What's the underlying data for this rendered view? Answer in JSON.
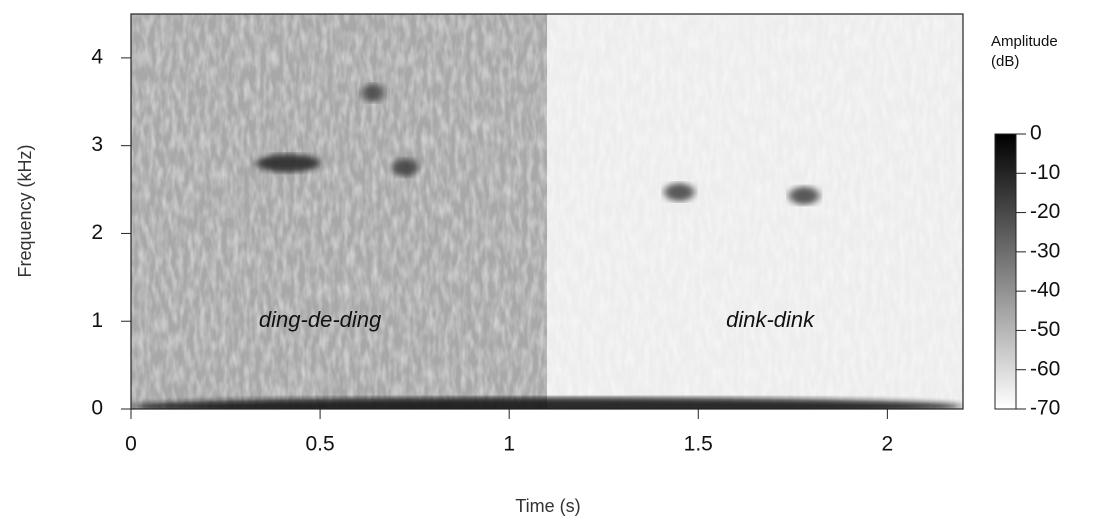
{
  "chart_data": {
    "type": "spectrogram",
    "x_label": "Time (s)",
    "y_label": "Frequency (kHz)",
    "colorbar_title": [
      "Amplitude",
      "(dB)"
    ],
    "xlim": [
      0,
      2.2
    ],
    "xticks": [
      0,
      0.5,
      1,
      1.5,
      2
    ],
    "ylim": [
      0,
      4.5
    ],
    "yticks": [
      0,
      1,
      2,
      3,
      4
    ],
    "clim": [
      -70,
      0
    ],
    "cticks": [
      0,
      -10,
      -20,
      -30,
      -40,
      -50,
      -60,
      -70
    ],
    "background": [
      {
        "t": [
          0,
          1.1
        ],
        "db": -46
      },
      {
        "t": [
          1.1,
          2.2
        ],
        "db": -65
      }
    ],
    "features": [
      {
        "t": [
          0.33,
          0.5
        ],
        "f": 2.8,
        "db": -12
      },
      {
        "t": [
          0.61,
          0.67
        ],
        "f": 3.6,
        "db": -20
      },
      {
        "t": [
          0.69,
          0.76
        ],
        "f": 2.75,
        "db": -18
      },
      {
        "t": [
          1.41,
          1.49
        ],
        "f": 2.47,
        "db": -20
      },
      {
        "t": [
          1.74,
          1.82
        ],
        "f": 2.43,
        "db": -20
      },
      {
        "t": [
          0,
          2.2
        ],
        "f": 0.03,
        "db": -5
      }
    ],
    "annotations": [
      "ding-de-ding",
      "dink-dink"
    ]
  }
}
